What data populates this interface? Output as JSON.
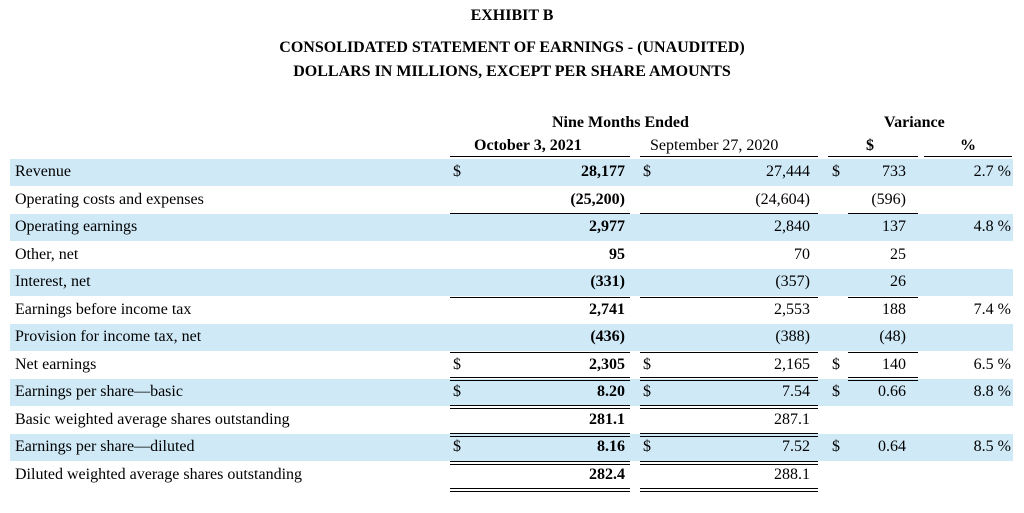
{
  "header": {
    "exhibit": "EXHIBIT B",
    "title": "CONSOLIDATED STATEMENT OF EARNINGS - (UNAUDITED)",
    "subtitle": "DOLLARS IN MILLIONS, EXCEPT PER SHARE AMOUNTS"
  },
  "columns": {
    "period_group": "Nine Months Ended",
    "current": "October 3, 2021",
    "prior": "September 27, 2020",
    "variance_group": "Variance",
    "var_dollar": "$",
    "var_pct": "%"
  },
  "rows": [
    {
      "label": "Revenue",
      "d1": "$",
      "cur": "28,177",
      "d2": "$",
      "prior": "27,444",
      "d3": "$",
      "var": "733",
      "pct": "2.7 %"
    },
    {
      "label": "Operating costs and expenses",
      "d1": "",
      "cur": "(25,200)",
      "d2": "",
      "prior": "(24,604)",
      "d3": "",
      "var": "(596)",
      "pct": ""
    },
    {
      "label": "Operating earnings",
      "d1": "",
      "cur": "2,977",
      "d2": "",
      "prior": "2,840",
      "d3": "",
      "var": "137",
      "pct": "4.8 %"
    },
    {
      "label": "Other, net",
      "d1": "",
      "cur": "95",
      "d2": "",
      "prior": "70",
      "d3": "",
      "var": "25",
      "pct": ""
    },
    {
      "label": "Interest, net",
      "d1": "",
      "cur": "(331)",
      "d2": "",
      "prior": "(357)",
      "d3": "",
      "var": "26",
      "pct": ""
    },
    {
      "label": "Earnings before income tax",
      "d1": "",
      "cur": "2,741",
      "d2": "",
      "prior": "2,553",
      "d3": "",
      "var": "188",
      "pct": "7.4 %"
    },
    {
      "label": "Provision for income tax, net",
      "d1": "",
      "cur": "(436)",
      "d2": "",
      "prior": "(388)",
      "d3": "",
      "var": "(48)",
      "pct": ""
    },
    {
      "label": "Net earnings",
      "d1": "$",
      "cur": "2,305",
      "d2": "$",
      "prior": "2,165",
      "d3": "$",
      "var": "140",
      "pct": "6.5 %"
    },
    {
      "label": "Earnings per share—basic",
      "d1": "$",
      "cur": "8.20",
      "d2": "$",
      "prior": "7.54",
      "d3": "$",
      "var": "0.66",
      "pct": "8.8 %"
    },
    {
      "label": "Basic weighted average shares outstanding",
      "d1": "",
      "cur": "281.1",
      "d2": "",
      "prior": "287.1",
      "d3": "",
      "var": "",
      "pct": ""
    },
    {
      "label": "Earnings per share—diluted",
      "d1": "$",
      "cur": "8.16",
      "d2": "$",
      "prior": "7.52",
      "d3": "$",
      "var": "0.64",
      "pct": "8.5 %"
    },
    {
      "label": "Diluted weighted average shares outstanding",
      "d1": "",
      "cur": "282.4",
      "d2": "",
      "prior": "288.1",
      "d3": "",
      "var": "",
      "pct": ""
    }
  ]
}
